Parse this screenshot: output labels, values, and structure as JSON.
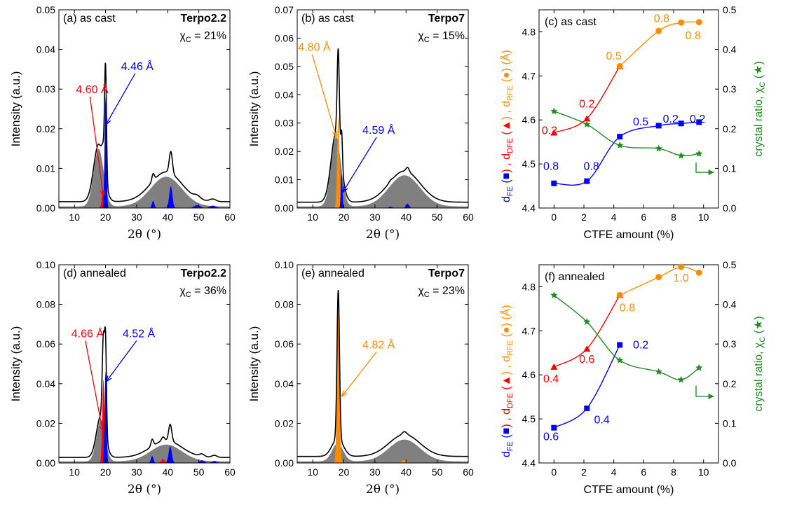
{
  "colors": {
    "dfe": "#ff0000",
    "rfe": "#ff8c00",
    "fe": "#0000ff",
    "chi": "#228b22",
    "amorph": "#808080",
    "total": "#000000"
  },
  "chart_data": [
    {
      "id": "a",
      "type": "area",
      "tag": "(a) as cast",
      "sample": "Terpo2.2",
      "chi_label": "χ",
      "chi_sub": "C",
      "chi_value": "= 21%",
      "xlabel": "2θ (°)",
      "ylabel": "Intensity (a.u.)",
      "xlim": [
        5,
        60
      ],
      "ylim": [
        0,
        0.05
      ],
      "xticks": [
        10,
        20,
        30,
        40,
        50,
        60
      ],
      "yticks": [
        "0.00",
        "0.01",
        "0.02",
        "0.03",
        "0.04",
        "0.05"
      ],
      "amorphous": [
        {
          "c": 17.8,
          "h": 0.0145,
          "w": 1.6
        },
        {
          "c": 39.5,
          "h": 0.0075,
          "w": 5.0
        }
      ],
      "peaks": [
        {
          "color": "dfe",
          "c": 19.3,
          "h": 0.0045,
          "w": 0.45
        },
        {
          "color": "fe",
          "c": 20.0,
          "h": 0.028,
          "w": 0.3
        },
        {
          "color": "fe",
          "c": 35.3,
          "h": 0.0018,
          "w": 0.4
        },
        {
          "color": "fe",
          "c": 41.0,
          "h": 0.0055,
          "w": 0.5
        },
        {
          "color": "fe",
          "c": 49.5,
          "h": 0.0007,
          "w": 1.0
        },
        {
          "color": "fe",
          "c": 54.5,
          "h": 0.0006,
          "w": 1.0
        }
      ],
      "total_offset": 0.0012,
      "annotations": [
        {
          "text": "4.60 Å",
          "color": "dfe",
          "at": [
            10.5,
            0.029
          ],
          "to": [
            19.3,
            0.003
          ]
        },
        {
          "text": "4.46 Å",
          "color": "fe",
          "at": [
            25.0,
            0.0348
          ],
          "to": [
            20.1,
            0.021
          ]
        }
      ]
    },
    {
      "id": "b",
      "type": "area",
      "tag": "(b) as cast",
      "sample": "Terpo7",
      "chi_label": "χ",
      "chi_sub": "C",
      "chi_value": "= 15%",
      "xlabel": "2θ (°)",
      "ylabel": "Intensity (a.u.)",
      "xlim": [
        5,
        60
      ],
      "ylim": [
        0,
        0.07
      ],
      "xticks": [
        10,
        20,
        30,
        40,
        50,
        60
      ],
      "yticks": [
        "0.00",
        "0.01",
        "0.02",
        "0.03",
        "0.04",
        "0.05",
        "0.06",
        "0.07"
      ],
      "amorphous": [
        {
          "c": 17.5,
          "h": 0.0245,
          "w": 1.6
        },
        {
          "c": 39.5,
          "h": 0.011,
          "w": 5.0
        }
      ],
      "peaks": [
        {
          "color": "rfe",
          "c": 18.2,
          "h": 0.032,
          "w": 0.35
        },
        {
          "color": "fe",
          "c": 19.3,
          "h": 0.012,
          "w": 0.25
        },
        {
          "color": "fe",
          "c": 35.0,
          "h": 0.0005,
          "w": 0.5
        },
        {
          "color": "fe",
          "c": 40.5,
          "h": 0.0015,
          "w": 0.5
        }
      ],
      "total_offset": 0.0015,
      "annotations": [
        {
          "text": "4.80 Å",
          "color": "rfe",
          "at": [
            5.3,
            0.0555
          ],
          "to": [
            17.6,
            0.025
          ]
        },
        {
          "text": "4.59 Å",
          "color": "fe",
          "at": [
            26.0,
            0.0262
          ],
          "to": [
            19.6,
            0.0055
          ]
        }
      ]
    },
    {
      "id": "d",
      "type": "area",
      "tag": "(d) annealed",
      "sample": "Terpo2.2",
      "chi_label": "χ",
      "chi_sub": "C",
      "chi_value": "= 36%",
      "xlabel": "2θ (°)",
      "ylabel": "Intensity (a.u.)",
      "xlim": [
        5,
        60
      ],
      "ylim": [
        0,
        0.1
      ],
      "xticks": [
        10,
        20,
        30,
        40,
        50,
        60
      ],
      "yticks": [
        "0.00",
        "0.02",
        "0.04",
        "0.06",
        "0.08",
        "0.10"
      ],
      "amorphous": [
        {
          "c": 18.5,
          "h": 0.021,
          "w": 1.4
        },
        {
          "c": 39.5,
          "h": 0.0085,
          "w": 5.0
        }
      ],
      "peaks": [
        {
          "color": "dfe",
          "c": 19.3,
          "h": 0.042,
          "w": 0.35
        },
        {
          "color": "fe",
          "c": 20.0,
          "h": 0.046,
          "w": 0.3
        },
        {
          "color": "fe",
          "c": 35.0,
          "h": 0.0035,
          "w": 0.4
        },
        {
          "color": "fe",
          "c": 40.8,
          "h": 0.0085,
          "w": 0.5
        },
        {
          "color": "dfe",
          "c": 38.5,
          "h": 0.002,
          "w": 0.5
        },
        {
          "color": "fe",
          "c": 51.0,
          "h": 0.0012,
          "w": 0.8
        },
        {
          "color": "fe",
          "c": 55.0,
          "h": 0.001,
          "w": 0.8
        }
      ],
      "total_offset": 0.002,
      "annotations": [
        {
          "text": "4.66 Å",
          "color": "dfe",
          "at": [
            9.0,
            0.0635
          ],
          "to": [
            19.1,
            0.016
          ]
        },
        {
          "text": "4.52 Å",
          "color": "fe",
          "at": [
            25.5,
            0.0635
          ],
          "to": [
            20.2,
            0.041
          ]
        }
      ]
    },
    {
      "id": "e",
      "type": "area",
      "tag": "(e) annealed",
      "sample": "Terpo7",
      "chi_label": "χ",
      "chi_sub": "C",
      "chi_value": "= 23%",
      "xlabel": "2θ (°)",
      "ylabel": "Intensity (a.u.)",
      "xlim": [
        5,
        60
      ],
      "ylim": [
        0,
        0.1
      ],
      "xticks": [
        10,
        20,
        30,
        40,
        50,
        60
      ],
      "yticks": [
        "0.00",
        "0.02",
        "0.04",
        "0.06",
        "0.08",
        "0.10"
      ],
      "amorphous": [
        {
          "c": 18.0,
          "h": 0.009,
          "w": 1.8
        },
        {
          "c": 39.5,
          "h": 0.011,
          "w": 5.0
        }
      ],
      "peaks": [
        {
          "color": "rfe",
          "c": 18.2,
          "h": 0.075,
          "w": 0.4
        },
        {
          "color": "rfe",
          "c": 39.5,
          "h": 0.0015,
          "w": 0.7
        }
      ],
      "total_offset": 0.0025,
      "annotations": [
        {
          "text": "4.82 Å",
          "color": "rfe",
          "at": [
            26.0,
            0.0578
          ],
          "to": [
            19.3,
            0.0335
          ]
        }
      ]
    },
    {
      "id": "c",
      "type": "line",
      "tag": "(c) as cast",
      "xlabel": "CTFE amount (%)",
      "ylabel_left": [
        "d",
        "FE",
        " (",
        ") , d",
        "DFE",
        " (",
        ") , d",
        "RFE",
        " (",
        ") (Å)"
      ],
      "ylabel_right": "crystal ratio, χ",
      "ylabel_right_sub": "C",
      "ylabel_right_marker": "★",
      "xlim": [
        -1,
        11
      ],
      "ylim": [
        4.4,
        4.85
      ],
      "y2lim": [
        0,
        0.5
      ],
      "xticks": [
        0,
        2,
        4,
        6,
        8,
        10
      ],
      "yticks": [
        "4.4",
        "4.5",
        "4.6",
        "4.7",
        "4.8"
      ],
      "y2ticks": [
        "0.0",
        "0.1",
        "0.2",
        "0.3",
        "0.4",
        "0.5"
      ],
      "series": [
        {
          "color": "fe",
          "marker": "square",
          "axis": "left",
          "x": [
            0,
            2.2,
            4.4,
            7.0,
            8.5,
            9.7
          ],
          "y": [
            4.456,
            4.461,
            4.562,
            4.587,
            4.592,
            4.595
          ]
        },
        {
          "color": "dfe",
          "marker": "triangle",
          "axis": "left",
          "x": [
            0,
            2.2,
            4.4
          ],
          "y": [
            4.571,
            4.603,
            4.722
          ]
        },
        {
          "color": "rfe",
          "marker": "circle",
          "axis": "left",
          "x": [
            4.4,
            7.0,
            8.5,
            9.7
          ],
          "y": [
            4.722,
            4.802,
            4.821,
            4.822
          ]
        },
        {
          "color": "chi",
          "marker": "star",
          "axis": "right",
          "x": [
            0,
            2.2,
            4.4,
            7.0,
            8.5,
            9.7
          ],
          "y": [
            0.244,
            0.211,
            0.158,
            0.15,
            0.132,
            0.137
          ]
        }
      ],
      "labels": [
        {
          "text": "0.8",
          "color": "fe",
          "x": -0.2,
          "y": 4.487
        },
        {
          "text": "0.8",
          "color": "fe",
          "x": 2.5,
          "y": 4.487
        },
        {
          "text": "0.5",
          "color": "fe",
          "x": 5.8,
          "y": 4.588
        },
        {
          "text": "0.2",
          "color": "fe",
          "x": 7.8,
          "y": 4.594
        },
        {
          "text": "0.2",
          "color": "fe",
          "x": 9.6,
          "y": 4.594
        },
        {
          "text": "0.2",
          "color": "dfe",
          "x": -0.3,
          "y": 4.568
        },
        {
          "text": "0.2",
          "color": "dfe",
          "x": 2.2,
          "y": 4.628
        },
        {
          "text": "0.5",
          "color": "rfe",
          "x": 4.0,
          "y": 4.737
        },
        {
          "text": "0.8",
          "color": "rfe",
          "x": 7.2,
          "y": 4.822
        },
        {
          "text": "0.8",
          "color": "rfe",
          "x": 9.3,
          "y": 4.783
        }
      ],
      "arrow": {
        "at": [
          9.5,
          0.115
        ],
        "to": [
          10.7,
          0.09
        ]
      }
    },
    {
      "id": "f",
      "type": "line",
      "tag": "(f) annealed",
      "xlabel": "CTFE amount (%)",
      "ylabel_left": [
        "d",
        "FE",
        " (",
        ") , d",
        "DFE",
        " (",
        ") , d",
        "RFE",
        " (",
        ") (Å)"
      ],
      "ylabel_right": "crystal ratio, χ",
      "ylabel_right_sub": "C",
      "ylabel_right_marker": "★",
      "xlim": [
        -1,
        11
      ],
      "ylim": [
        4.4,
        4.85
      ],
      "y2lim": [
        0,
        0.5
      ],
      "xticks": [
        0,
        2,
        4,
        6,
        8,
        10
      ],
      "yticks": [
        "4.4",
        "4.5",
        "4.6",
        "4.7",
        "4.8"
      ],
      "y2ticks": [
        "0.0",
        "0.1",
        "0.2",
        "0.3",
        "0.4",
        "0.5"
      ],
      "series": [
        {
          "color": "fe",
          "marker": "square",
          "axis": "left",
          "x": [
            0,
            2.2,
            4.4
          ],
          "y": [
            4.48,
            4.524,
            4.668
          ]
        },
        {
          "color": "dfe",
          "marker": "triangle",
          "axis": "left",
          "x": [
            0,
            2.2,
            4.4
          ],
          "y": [
            4.618,
            4.659,
            4.781
          ]
        },
        {
          "color": "rfe",
          "marker": "circle",
          "axis": "left",
          "x": [
            4.4,
            7.0,
            8.5,
            9.7
          ],
          "y": [
            4.781,
            4.822,
            4.845,
            4.832
          ]
        },
        {
          "color": "chi",
          "marker": "star",
          "axis": "right",
          "x": [
            0,
            2.2,
            4.4,
            7.0,
            8.5,
            9.7
          ],
          "y": [
            0.423,
            0.356,
            0.259,
            0.23,
            0.21,
            0.24
          ]
        }
      ],
      "labels": [
        {
          "text": "0.6",
          "color": "fe",
          "x": -0.2,
          "y": 4.452
        },
        {
          "text": "0.4",
          "color": "fe",
          "x": 3.2,
          "y": 4.49
        },
        {
          "text": "0.2",
          "color": "fe",
          "x": 5.8,
          "y": 4.66
        },
        {
          "text": "0.4",
          "color": "dfe",
          "x": -0.2,
          "y": 4.583
        },
        {
          "text": "0.6",
          "color": "dfe",
          "x": 2.2,
          "y": 4.627
        },
        {
          "text": "0.8",
          "color": "rfe",
          "x": 4.9,
          "y": 4.744
        },
        {
          "text": "1.0",
          "color": "rfe",
          "x": 8.5,
          "y": 4.812
        }
      ],
      "arrow": {
        "at": [
          9.5,
          0.195
        ],
        "to": [
          10.7,
          0.168
        ]
      }
    }
  ]
}
